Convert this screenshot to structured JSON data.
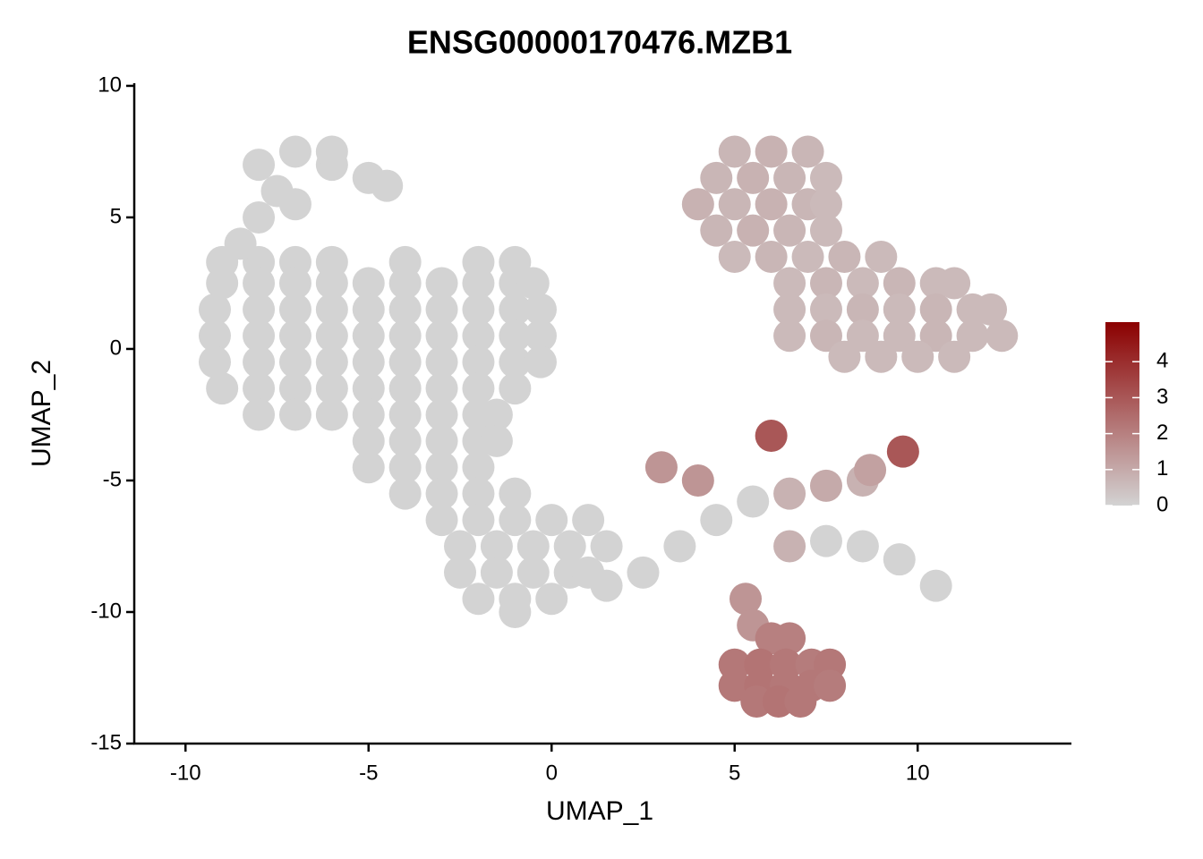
{
  "chart_data": {
    "type": "scatter",
    "title": "ENSG00000170476.MZB1",
    "x_label": "UMAP_1",
    "y_label": "UMAP_2",
    "xlim": [
      -11.4,
      14.2
    ],
    "ylim": [
      -15,
      10.1
    ],
    "xticks": [
      -10,
      -5,
      0,
      5,
      10
    ],
    "yticks": [
      -15,
      -10,
      -5,
      0,
      5,
      10
    ],
    "color_low": "#d3d3d3",
    "color_high": "#8b0000",
    "color_lim": [
      0,
      5.1
    ],
    "color_ticks": [
      0,
      1,
      2,
      3,
      4
    ],
    "x": [
      -9,
      -8,
      -7,
      -6,
      -4,
      -2,
      -1,
      -9,
      -8,
      -7,
      -6,
      -5,
      -4,
      -3,
      -2,
      -1,
      -0.5,
      -9.2,
      -8,
      -7,
      -6,
      -5,
      -4,
      -3,
      -2,
      -1,
      -0.3,
      -9.2,
      -8,
      -7,
      -6,
      -5,
      -4,
      -3,
      -2,
      -1,
      -0.3,
      -9.2,
      -8,
      -7,
      -6,
      -5,
      -4,
      -3,
      -2,
      -1,
      -0.3,
      -9,
      -8,
      -7,
      -6,
      -5,
      -4,
      -3,
      -2,
      -1,
      -8,
      -7,
      -6,
      -5,
      -4,
      -3,
      -2,
      -1.5,
      -8.5,
      -8,
      -7.5,
      -8,
      -7,
      -6,
      -5,
      -4.5,
      -7,
      -6,
      -5,
      -4,
      -3,
      -2,
      -1.5,
      -5,
      -4,
      -3,
      -2,
      -4,
      -3,
      -2,
      -1,
      -3,
      -2,
      -1,
      0,
      1,
      -2.5,
      -1.5,
      -0.5,
      0.5,
      1.5,
      -2.5,
      -1.5,
      -0.5,
      0.5,
      1,
      -2,
      -1,
      0,
      -1,
      1.5,
      2.5,
      3.5,
      4.5,
      5.5,
      6.5,
      7.5,
      8.5,
      3,
      4,
      6,
      9.6,
      8.7,
      6.5,
      7.5,
      8.5,
      9.5,
      10.5,
      5.3,
      5.5,
      6,
      6.5,
      5,
      5.7,
      6.4,
      7.1,
      7.6,
      5,
      5.7,
      6.4,
      7.1,
      7.6,
      5.6,
      6.2,
      6.8,
      5,
      6,
      7,
      4.5,
      5.5,
      6.5,
      7.5,
      4,
      5,
      6,
      7,
      7.5,
      4.5,
      5.5,
      6.5,
      7.5,
      5,
      6,
      7,
      8,
      9,
      6.5,
      7.5,
      8.5,
      9.5,
      10.5,
      11,
      6.5,
      7.5,
      8.5,
      9.5,
      10.5,
      11.5,
      12,
      6.5,
      7.5,
      8.5,
      9.5,
      10.5,
      11.5,
      12.3,
      8,
      9,
      10,
      11
    ],
    "y": [
      3.3,
      3.3,
      3.3,
      3.3,
      3.3,
      3.3,
      3.3,
      2.5,
      2.5,
      2.5,
      2.5,
      2.5,
      2.5,
      2.5,
      2.5,
      2.5,
      2.5,
      1.5,
      1.5,
      1.5,
      1.5,
      1.5,
      1.5,
      1.5,
      1.5,
      1.5,
      1.5,
      0.5,
      0.5,
      0.5,
      0.5,
      0.5,
      0.5,
      0.5,
      0.5,
      0.5,
      0.5,
      -0.5,
      -0.5,
      -0.5,
      -0.5,
      -0.5,
      -0.5,
      -0.5,
      -0.5,
      -0.5,
      -0.5,
      -1.5,
      -1.5,
      -1.5,
      -1.5,
      -1.5,
      -1.5,
      -1.5,
      -1.5,
      -1.5,
      -2.5,
      -2.5,
      -2.5,
      -2.5,
      -2.5,
      -2.5,
      -2.5,
      -2.5,
      4,
      5,
      6,
      7,
      7.5,
      7,
      6.5,
      6.2,
      5.5,
      7.5,
      -3.5,
      -3.5,
      -3.5,
      -3.5,
      -3.5,
      -4.5,
      -4.5,
      -4.5,
      -4.5,
      -5.5,
      -5.5,
      -5.5,
      -5.5,
      -6.5,
      -6.5,
      -6.5,
      -6.5,
      -6.5,
      -7.5,
      -7.5,
      -7.5,
      -7.5,
      -7.5,
      -8.5,
      -8.5,
      -8.5,
      -8.5,
      -8.5,
      -9.5,
      -9.5,
      -9.5,
      -10,
      -9,
      -8.5,
      -7.5,
      -6.5,
      -5.8,
      -5.5,
      -5.2,
      -5,
      -4.5,
      -5,
      -3.3,
      -3.9,
      -4.6,
      -7.5,
      -7.3,
      -7.5,
      -8,
      -9,
      -9.5,
      -10.5,
      -11,
      -11,
      -12,
      -12,
      -12,
      -12,
      -12,
      -12.8,
      -12.8,
      -12.8,
      -12.8,
      -12.8,
      -13.4,
      -13.4,
      -13.4,
      7.5,
      7.5,
      7.5,
      6.5,
      6.5,
      6.5,
      6.5,
      5.5,
      5.5,
      5.5,
      5.5,
      5.5,
      4.5,
      4.5,
      4.5,
      4.5,
      3.5,
      3.5,
      3.5,
      3.5,
      3.5,
      2.5,
      2.5,
      2.5,
      2.5,
      2.5,
      2.5,
      1.5,
      1.5,
      1.5,
      1.5,
      1.5,
      1.5,
      1.5,
      0.5,
      0.5,
      0.5,
      0.5,
      0.5,
      0.5,
      0.5,
      -0.3,
      -0.3,
      -0.3,
      -0.3
    ],
    "values": [
      0,
      0,
      0,
      0,
      0,
      0,
      0,
      0,
      0,
      0,
      0,
      0,
      0,
      0,
      0,
      0,
      0,
      0,
      0,
      0,
      0,
      0,
      0,
      0,
      0,
      0,
      0,
      0,
      0,
      0,
      0,
      0,
      0,
      0,
      0,
      0,
      0,
      0,
      0,
      0,
      0,
      0,
      0,
      0,
      0,
      0,
      0,
      0,
      0,
      0,
      0,
      0,
      0,
      0,
      0,
      0,
      0,
      0,
      0,
      0,
      0,
      0,
      0,
      0,
      0,
      0,
      0,
      0,
      0,
      0,
      0,
      0,
      0,
      0,
      0,
      0,
      0,
      0,
      0,
      0,
      0,
      0,
      0,
      0,
      0,
      0,
      0,
      0,
      0,
      0,
      0,
      0,
      0,
      0,
      0,
      0,
      0,
      0,
      0,
      0,
      0,
      0,
      0,
      0,
      0,
      0,
      0,
      0,
      0,
      0,
      0,
      0.8,
      1,
      0.8,
      1.5,
      1.5,
      3,
      3,
      1.2,
      0.8,
      0,
      0,
      0,
      0,
      1.5,
      1.5,
      2,
      2,
      2.2,
      2.3,
      2.2,
      2.1,
      2.2,
      2.2,
      2.3,
      2.2,
      2.2,
      2.1,
      2.2,
      2.3,
      2.2,
      0.7,
      0.8,
      0.7,
      0.7,
      0.8,
      0.7,
      0.6,
      0.8,
      0.7,
      0.8,
      0.7,
      0.6,
      0.7,
      0.8,
      0.7,
      0.6,
      0.6,
      0.7,
      0.6,
      0.7,
      0.6,
      0.6,
      0.7,
      0.6,
      0.7,
      0.6,
      0.6,
      0.6,
      0.6,
      0.7,
      0.6,
      0.7,
      0.6,
      0.6,
      0.6,
      0.7,
      0.6,
      0.6,
      0.7,
      0.6,
      0.6,
      0.6,
      0.6,
      0.6,
      0.6
    ]
  }
}
